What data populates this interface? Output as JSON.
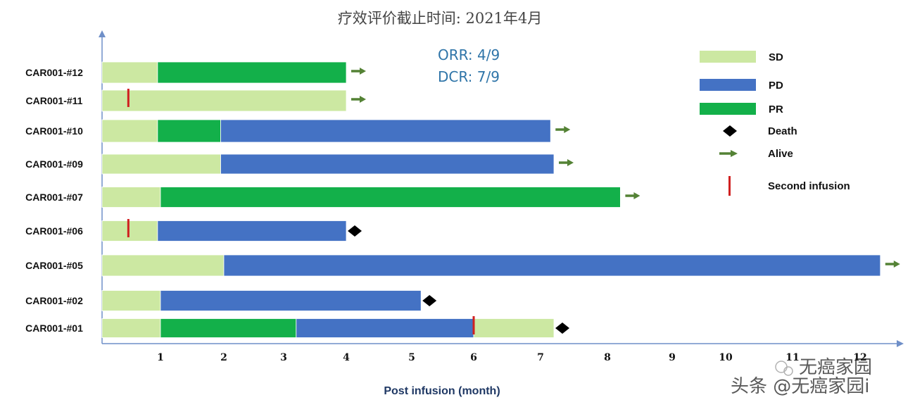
{
  "chart_data": {
    "type": "swimmer-bar",
    "title": "疗效评价截止时间: 2021年4月",
    "xlabel": "Post infusion (month)",
    "x_ticks": [
      "1",
      "2",
      "3",
      "4",
      "5",
      "6",
      "7",
      "8",
      "9",
      "10",
      "11",
      "12"
    ],
    "xlim": [
      0,
      12.5
    ],
    "annotations": [
      "ORR: 4/9",
      "DCR: 7/9"
    ],
    "colors": {
      "SD": "#cce8a2",
      "PD": "#4472c4",
      "PR": "#13b04a",
      "alive": "#548235",
      "second_infusion": "#d02020",
      "death": "#000000"
    },
    "legend": [
      {
        "label": "SD",
        "type": "SD"
      },
      {
        "label": "PD",
        "type": "PD"
      },
      {
        "label": "PR",
        "type": "PR"
      },
      {
        "label": "Death",
        "type": "death"
      },
      {
        "label": "Alive",
        "type": "alive"
      },
      {
        "label": "Second infusion",
        "type": "second_infusion"
      }
    ],
    "patients": [
      {
        "id": "CAR001-#12",
        "segments": [
          {
            "status": "SD",
            "start": 0,
            "end": 0.95
          },
          {
            "status": "PR",
            "start": 0.95,
            "end": 4.0
          }
        ],
        "outcome": "alive",
        "second_infusion": null
      },
      {
        "id": "CAR001-#11",
        "segments": [
          {
            "status": "SD",
            "start": 0,
            "end": 4.0
          }
        ],
        "outcome": "alive",
        "second_infusion": 0.45
      },
      {
        "id": "CAR001-#10",
        "segments": [
          {
            "status": "SD",
            "start": 0,
            "end": 0.95
          },
          {
            "status": "PR",
            "start": 0.95,
            "end": 1.95
          },
          {
            "status": "PD",
            "start": 1.95,
            "end": 7.15
          }
        ],
        "outcome": "alive",
        "second_infusion": null
      },
      {
        "id": "CAR001-#09",
        "segments": [
          {
            "status": "SD",
            "start": 0,
            "end": 1.95
          },
          {
            "status": "PD",
            "start": 1.95,
            "end": 7.2
          }
        ],
        "outcome": "alive",
        "second_infusion": null
      },
      {
        "id": "CAR001-#07",
        "segments": [
          {
            "status": "SD",
            "start": 0,
            "end": 1.0
          },
          {
            "status": "PR",
            "start": 1.0,
            "end": 8.2
          }
        ],
        "outcome": "alive",
        "second_infusion": null
      },
      {
        "id": "CAR001-#06",
        "segments": [
          {
            "status": "SD",
            "start": 0,
            "end": 0.95
          },
          {
            "status": "PD",
            "start": 0.95,
            "end": 4.0
          }
        ],
        "outcome": "death",
        "second_infusion": 0.45
      },
      {
        "id": "CAR001-#05",
        "segments": [
          {
            "status": "SD",
            "start": 0,
            "end": 2.0
          },
          {
            "status": "PD",
            "start": 2.0,
            "end": 12.3
          }
        ],
        "outcome": "alive",
        "second_infusion": null
      },
      {
        "id": "CAR001-#02",
        "segments": [
          {
            "status": "SD",
            "start": 0,
            "end": 1.0
          },
          {
            "status": "PD",
            "start": 1.0,
            "end": 5.15
          }
        ],
        "outcome": "death",
        "second_infusion": null
      },
      {
        "id": "CAR001-#01",
        "segments": [
          {
            "status": "SD",
            "start": 0,
            "end": 1.0
          },
          {
            "status": "PR",
            "start": 1.0,
            "end": 3.2
          },
          {
            "status": "PD",
            "start": 3.2,
            "end": 6.0
          },
          {
            "status": "SD",
            "start": 6.0,
            "end": 7.2
          }
        ],
        "outcome": "death",
        "second_infusion": 6.0
      }
    ]
  },
  "watermark": {
    "logo_text": "无癌家园",
    "credit_text": "头条 @无癌家园i"
  }
}
